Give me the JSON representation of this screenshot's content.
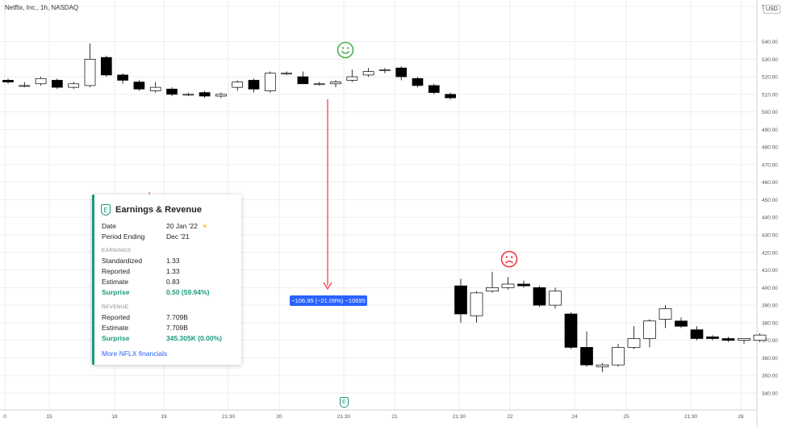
{
  "header": {
    "symbol_title": "Netflix, Inc., 1h, NASDAQ",
    "currency": "USD"
  },
  "earnings_card": {
    "badge": "E",
    "title": "Earnings & Revenue",
    "date_label": "Date",
    "date_value": "20 Jan '22",
    "period_label": "Period Ending",
    "period_value": "Dec '21",
    "earnings_section": "EARNINGS",
    "standardized_label": "Standardized",
    "standardized_value": "1.33",
    "reported_label": "Reported",
    "reported_value": "1.33",
    "estimate_label": "Estimate",
    "estimate_value": "0.83",
    "surprise_label": "Surprise",
    "surprise_value": "0.50 (59.94%)",
    "revenue_section": "REVENUE",
    "rev_reported_label": "Reported",
    "rev_reported_value": "7.709B",
    "rev_estimate_label": "Estimate",
    "rev_estimate_value": "7.709B",
    "rev_surprise_label": "Surprise",
    "rev_surprise_value": "345.305K (0.00%)",
    "more_link": "More NFLX financials"
  },
  "measure_label": "−106.95 (−21.09%) −10695",
  "earnings_marker": "E",
  "colors": {
    "positive": "#4caf50",
    "negative": "#f23645",
    "earnings": "#1a9a7c",
    "measure": "#2962ff",
    "grid": "#eeeeee"
  },
  "icons": [
    "happy-face-icon",
    "sad-face-icon",
    "sun-icon",
    "earnings-badge-icon"
  ],
  "chart_data": {
    "type": "candlestick",
    "y_axis_labels": [
      "560.00",
      "540.00",
      "530.00",
      "520.00",
      "510.00",
      "500.00",
      "490.00",
      "480.00",
      "470.00",
      "460.00",
      "450.00",
      "440.00",
      "430.00",
      "420.00",
      "410.00",
      "400.00",
      "390.00",
      "380.00",
      "370.00",
      "360.00",
      "350.00",
      "340.00"
    ],
    "ylim": [
      334,
      560
    ],
    "x_axis_labels": [
      "0",
      "15",
      "18",
      "19",
      "21:30",
      "20",
      "21:30",
      "21",
      "21:30",
      "22",
      "24",
      "25",
      "21:30",
      "26"
    ],
    "candles": [
      {
        "o": 518,
        "h": 519,
        "l": 516,
        "c": 517
      },
      {
        "o": 515,
        "h": 517,
        "l": 514,
        "c": 515
      },
      {
        "o": 516,
        "h": 520,
        "l": 515,
        "c": 519
      },
      {
        "o": 518,
        "h": 519,
        "l": 513,
        "c": 514
      },
      {
        "o": 514,
        "h": 517,
        "l": 513,
        "c": 516
      },
      {
        "o": 515,
        "h": 539,
        "l": 514,
        "c": 530
      },
      {
        "o": 531,
        "h": 532,
        "l": 520,
        "c": 521
      },
      {
        "o": 521,
        "h": 522,
        "l": 516,
        "c": 518
      },
      {
        "o": 517,
        "h": 518,
        "l": 512,
        "c": 513
      },
      {
        "o": 512,
        "h": 517,
        "l": 511,
        "c": 514
      },
      {
        "o": 513,
        "h": 514,
        "l": 509,
        "c": 510
      },
      {
        "o": 510,
        "h": 511,
        "l": 509,
        "c": 510
      },
      {
        "o": 511,
        "h": 512,
        "l": 508,
        "c": 509
      },
      {
        "o": 509,
        "h": 511,
        "l": 508,
        "c": 510
      },
      {
        "o": 514,
        "h": 518,
        "l": 512,
        "c": 517
      },
      {
        "o": 518,
        "h": 519,
        "l": 511,
        "c": 513
      },
      {
        "o": 512,
        "h": 523,
        "l": 511,
        "c": 522
      },
      {
        "o": 522,
        "h": 523,
        "l": 521,
        "c": 522
      },
      {
        "o": 520,
        "h": 523,
        "l": 516,
        "c": 516
      },
      {
        "o": 516,
        "h": 517,
        "l": 515,
        "c": 516
      },
      {
        "o": 516,
        "h": 518,
        "l": 514,
        "c": 517
      },
      {
        "o": 518,
        "h": 524,
        "l": 517,
        "c": 520
      },
      {
        "o": 521,
        "h": 525,
        "l": 520,
        "c": 523
      },
      {
        "o": 524,
        "h": 525,
        "l": 522,
        "c": 524
      },
      {
        "o": 525,
        "h": 526,
        "l": 518,
        "c": 520
      },
      {
        "o": 519,
        "h": 520,
        "l": 514,
        "c": 515
      },
      {
        "o": 515,
        "h": 516,
        "l": 510,
        "c": 511
      },
      {
        "o": 510,
        "h": 511,
        "l": 507,
        "c": 508
      },
      {
        "o": 401,
        "h": 405,
        "l": 380,
        "c": 385
      },
      {
        "o": 384,
        "h": 398,
        "l": 380,
        "c": 397
      },
      {
        "o": 398,
        "h": 409,
        "l": 397,
        "c": 400
      },
      {
        "o": 400,
        "h": 406,
        "l": 399,
        "c": 402
      },
      {
        "o": 402,
        "h": 404,
        "l": 400,
        "c": 401
      },
      {
        "o": 400,
        "h": 401,
        "l": 389,
        "c": 390
      },
      {
        "o": 390,
        "h": 400,
        "l": 388,
        "c": 398
      },
      {
        "o": 385,
        "h": 386,
        "l": 365,
        "c": 366
      },
      {
        "o": 366,
        "h": 375,
        "l": 355,
        "c": 356
      },
      {
        "o": 355,
        "h": 357,
        "l": 352,
        "c": 356
      },
      {
        "o": 356,
        "h": 368,
        "l": 355,
        "c": 366
      },
      {
        "o": 366,
        "h": 378,
        "l": 365,
        "c": 371
      },
      {
        "o": 371,
        "h": 382,
        "l": 366,
        "c": 381
      },
      {
        "o": 382,
        "h": 390,
        "l": 377,
        "c": 388
      },
      {
        "o": 381,
        "h": 383,
        "l": 377,
        "c": 378
      },
      {
        "o": 376,
        "h": 378,
        "l": 370,
        "c": 371
      },
      {
        "o": 372,
        "h": 373,
        "l": 370,
        "c": 371
      },
      {
        "o": 371,
        "h": 372,
        "l": 369,
        "c": 370
      },
      {
        "o": 370,
        "h": 371,
        "l": 368,
        "c": 371
      },
      {
        "o": 370,
        "h": 374,
        "l": 369,
        "c": 373
      }
    ]
  }
}
